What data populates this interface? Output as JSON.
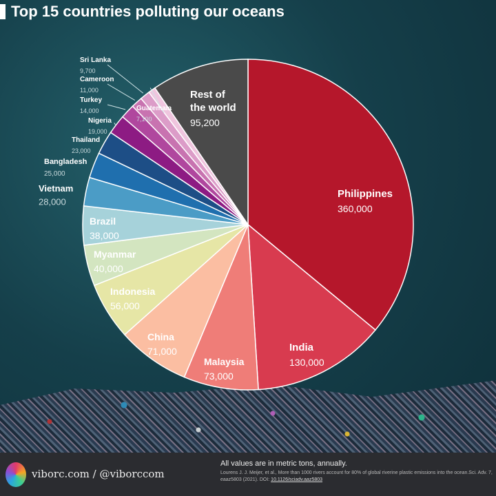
{
  "chart_data": {
    "type": "pie",
    "title": "Top 15 countries polluting our oceans",
    "unit_note": "All values are in metric tons, annually.",
    "start": "12 o'clock, clockwise",
    "slices": [
      {
        "label": "Philippines",
        "value": 360000,
        "value_label": "360,000",
        "color": "#b5172b"
      },
      {
        "label": "India",
        "value": 130000,
        "value_label": "130,000",
        "color": "#d83b4f"
      },
      {
        "label": "Malaysia",
        "value": 73000,
        "value_label": "73,000",
        "color": "#ef7d78"
      },
      {
        "label": "China",
        "value": 71000,
        "value_label": "71,000",
        "color": "#fbbea2"
      },
      {
        "label": "Indonesia",
        "value": 56000,
        "value_label": "56,000",
        "color": "#e6e6a6"
      },
      {
        "label": "Myanmar",
        "value": 40000,
        "value_label": "40,000",
        "color": "#d3e5c0"
      },
      {
        "label": "Brazil",
        "value": 38000,
        "value_label": "38,000",
        "color": "#a6d2da"
      },
      {
        "label": "Vietnam",
        "value": 28000,
        "value_label": "28,000",
        "color": "#4b9cc6"
      },
      {
        "label": "Bangladesh",
        "value": 25000,
        "value_label": "25,000",
        "color": "#1f6fae"
      },
      {
        "label": "Thailand",
        "value": 23000,
        "value_label": "23,000",
        "color": "#1d4e86"
      },
      {
        "label": "Nigeria",
        "value": 19000,
        "value_label": "19,000",
        "color": "#8d1b83"
      },
      {
        "label": "Turkey",
        "value": 14000,
        "value_label": "14,000",
        "color": "#b0479e"
      },
      {
        "label": "Cameroon",
        "value": 11000,
        "value_label": "11,000",
        "color": "#c873b0"
      },
      {
        "label": "Sri Lanka",
        "value": 9700,
        "value_label": "9,700",
        "color": "#dc9cc8"
      },
      {
        "label": "Guatemala",
        "value": 7100,
        "value_label": "7,100",
        "color": "#efc5de"
      },
      {
        "label": "Rest of the world",
        "value": 95200,
        "value_label": "95,200",
        "color": "#4a4a4a"
      }
    ]
  },
  "footer": {
    "brand": "viborc.com / @viborccom",
    "note": "All values are in metric tons, annually.",
    "source_text": "Lourens J. J. Meijer, et al., More than 1000 rivers account for 80% of global riverine plastic emissions into the ocean.Sci. Adv. 7, eaaz5803 (2021). DOI:",
    "doi": "10.1126/sciadv.aaz5803"
  }
}
